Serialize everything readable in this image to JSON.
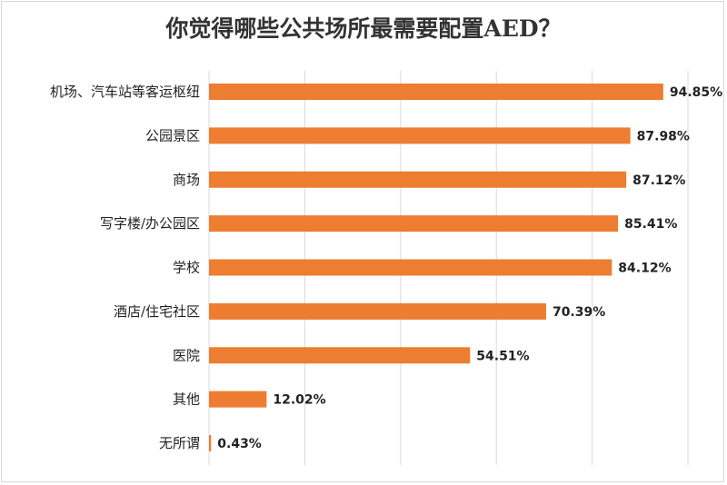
{
  "chart_data": {
    "type": "bar",
    "orientation": "horizontal",
    "title": "你觉得哪些公共场所最需要配置AED？",
    "categories": [
      "机场、汽车站等客运枢纽",
      "公园景区",
      "商场",
      "写字楼/办公园区",
      "学校",
      "酒店/住宅社区",
      "医院",
      "其他",
      "无所谓"
    ],
    "values": [
      94.85,
      87.98,
      87.12,
      85.41,
      84.12,
      70.39,
      54.51,
      12.02,
      0.43
    ],
    "value_labels": [
      "94.85%",
      "87.98%",
      "87.12%",
      "85.41%",
      "84.12%",
      "70.39%",
      "54.51%",
      "12.02%",
      "0.43%"
    ],
    "xlim": [
      0,
      100
    ],
    "grid": true,
    "bar_color": "#ED7D31",
    "grid_color": "#d9d9d9"
  }
}
